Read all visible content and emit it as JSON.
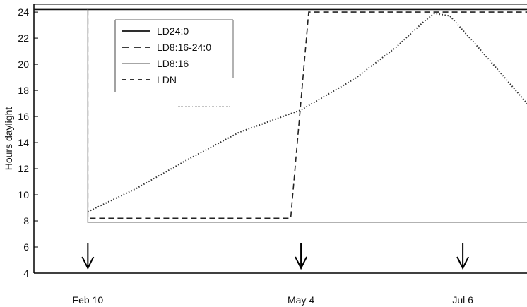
{
  "chart_data": {
    "type": "line",
    "ylabel": "Hours daylight",
    "xlabel": "",
    "ylim": [
      4,
      24.6
    ],
    "yticks": [
      4,
      6,
      8,
      10,
      12,
      14,
      16,
      18,
      20,
      22,
      24
    ],
    "x_tick_labels": [
      "Feb 10",
      "May 4",
      "Jul 6"
    ],
    "arrow_marks": [
      "Feb 10",
      "May 4",
      "Jul 6"
    ],
    "grid": false,
    "legend_position": "top-left",
    "series": [
      {
        "name": "LD24:0",
        "dash": "solid",
        "color": "#111111",
        "points": [
          [
            "Jan 20",
            24.2
          ],
          [
            "Jul 31",
            24.2
          ]
        ]
      },
      {
        "name": "LD8:16-24:0",
        "dash": "dashed",
        "color": "#222222",
        "points": [
          [
            "Feb 10",
            24.2
          ],
          [
            "Feb 10",
            8.2
          ],
          [
            "Apr 30",
            8.2
          ],
          [
            "May 7",
            24.0
          ],
          [
            "Jul 31",
            24.0
          ]
        ]
      },
      {
        "name": "LD8:16",
        "dash": "solid",
        "color": "#999999",
        "points": [
          [
            "Feb 10",
            24.2
          ],
          [
            "Feb 10",
            7.9
          ],
          [
            "Jul 31",
            7.9
          ]
        ]
      },
      {
        "name": "LDN",
        "dash": "dotted",
        "color": "#333333",
        "points": [
          [
            "Feb 10",
            8.7
          ],
          [
            "Mar 1",
            10.5
          ],
          [
            "Mar 20",
            12.6
          ],
          [
            "Apr 10",
            14.8
          ],
          [
            "May 4",
            16.5
          ],
          [
            "May 25",
            18.9
          ],
          [
            "Jun 10",
            21.3
          ],
          [
            "Jun 21",
            23.3
          ],
          [
            "Jun 25",
            23.9
          ],
          [
            "Jul 1",
            23.7
          ],
          [
            "Jul 12",
            21.3
          ],
          [
            "Jul 20",
            19.5
          ],
          [
            "Jul 31",
            17.0
          ]
        ]
      }
    ]
  }
}
